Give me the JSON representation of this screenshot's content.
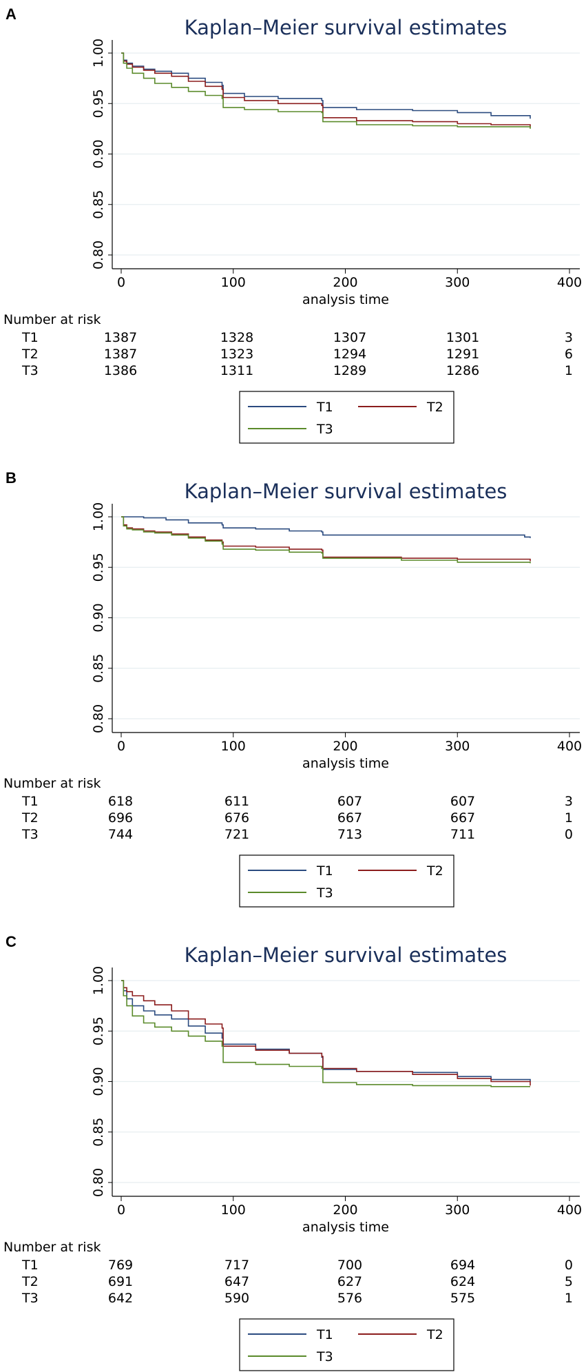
{
  "chart_data": [
    {
      "type": "line",
      "panel": "A",
      "title": "Kaplan–Meier survival estimates",
      "xlabel": "analysis time",
      "ylabel": "",
      "xlim": [
        0,
        400
      ],
      "ylim": [
        0.8,
        1.0
      ],
      "xticks": [
        0,
        100,
        200,
        300,
        400
      ],
      "yticks": [
        "1.00",
        "0.95",
        "0.90",
        "0.85",
        "0.80"
      ],
      "grid": true,
      "series": [
        {
          "name": "T1",
          "color": "#2a4a7f",
          "x": [
            0,
            2,
            5,
            10,
            20,
            30,
            45,
            60,
            75,
            90,
            91,
            110,
            140,
            179,
            180,
            210,
            260,
            300,
            330,
            365
          ],
          "y": [
            1.0,
            0.993,
            0.99,
            0.987,
            0.984,
            0.982,
            0.98,
            0.975,
            0.971,
            0.968,
            0.96,
            0.957,
            0.955,
            0.953,
            0.946,
            0.944,
            0.943,
            0.941,
            0.938,
            0.935
          ]
        },
        {
          "name": "T2",
          "color": "#8b1c1c",
          "x": [
            0,
            2,
            5,
            10,
            20,
            30,
            45,
            60,
            75,
            90,
            91,
            110,
            140,
            179,
            180,
            210,
            260,
            300,
            330,
            365
          ],
          "y": [
            1.0,
            0.992,
            0.989,
            0.986,
            0.983,
            0.98,
            0.977,
            0.972,
            0.967,
            0.964,
            0.956,
            0.953,
            0.95,
            0.948,
            0.936,
            0.933,
            0.932,
            0.93,
            0.929,
            0.926
          ]
        },
        {
          "name": "T3",
          "color": "#5a8a2a",
          "x": [
            0,
            2,
            5,
            10,
            20,
            30,
            45,
            60,
            75,
            90,
            91,
            110,
            140,
            179,
            180,
            210,
            260,
            300,
            330,
            365
          ],
          "y": [
            1.0,
            0.99,
            0.985,
            0.98,
            0.975,
            0.97,
            0.966,
            0.962,
            0.958,
            0.955,
            0.946,
            0.944,
            0.942,
            0.941,
            0.932,
            0.929,
            0.928,
            0.927,
            0.927,
            0.925
          ]
        }
      ],
      "risk_table": {
        "heading": "Number at risk",
        "times": [
          0,
          100,
          200,
          300,
          400
        ],
        "rows": [
          {
            "label": "T1",
            "values": [
              "1387",
              "1328",
              "1307",
              "1301",
              "3"
            ]
          },
          {
            "label": "T2",
            "values": [
              "1387",
              "1323",
              "1294",
              "1291",
              "6"
            ]
          },
          {
            "label": "T3",
            "values": [
              "1386",
              "1311",
              "1289",
              "1286",
              "1"
            ]
          }
        ]
      },
      "legend": [
        "T1",
        "T2",
        "T3"
      ]
    },
    {
      "type": "line",
      "panel": "B",
      "title": "Kaplan–Meier survival estimates",
      "xlabel": "analysis time",
      "ylabel": "",
      "xlim": [
        0,
        400
      ],
      "ylim": [
        0.8,
        1.0
      ],
      "xticks": [
        0,
        100,
        200,
        300,
        400
      ],
      "yticks": [
        "1.00",
        "0.95",
        "0.90",
        "0.85",
        "0.80"
      ],
      "grid": true,
      "series": [
        {
          "name": "T1",
          "color": "#2a4a7f",
          "x": [
            0,
            20,
            40,
            60,
            90,
            91,
            120,
            150,
            179,
            180,
            250,
            300,
            360,
            365
          ],
          "y": [
            1.0,
            0.999,
            0.997,
            0.994,
            0.992,
            0.989,
            0.988,
            0.986,
            0.985,
            0.982,
            0.982,
            0.982,
            0.98,
            0.979
          ]
        },
        {
          "name": "T2",
          "color": "#8b1c1c",
          "x": [
            0,
            2,
            5,
            10,
            20,
            30,
            45,
            60,
            75,
            90,
            91,
            120,
            150,
            179,
            180,
            250,
            300,
            365
          ],
          "y": [
            1.0,
            0.992,
            0.989,
            0.988,
            0.986,
            0.985,
            0.983,
            0.98,
            0.977,
            0.975,
            0.971,
            0.97,
            0.968,
            0.967,
            0.96,
            0.959,
            0.958,
            0.956
          ]
        },
        {
          "name": "T3",
          "color": "#5a8a2a",
          "x": [
            0,
            2,
            5,
            10,
            20,
            30,
            45,
            60,
            75,
            90,
            91,
            120,
            150,
            179,
            180,
            250,
            300,
            365
          ],
          "y": [
            1.0,
            0.991,
            0.988,
            0.987,
            0.985,
            0.984,
            0.982,
            0.979,
            0.976,
            0.973,
            0.968,
            0.967,
            0.965,
            0.964,
            0.959,
            0.957,
            0.955,
            0.954
          ]
        }
      ],
      "risk_table": {
        "heading": "Number at risk",
        "times": [
          0,
          100,
          200,
          300,
          400
        ],
        "rows": [
          {
            "label": "T1",
            "values": [
              "618",
              "611",
              "607",
              "607",
              "3"
            ]
          },
          {
            "label": "T2",
            "values": [
              "696",
              "676",
              "667",
              "667",
              "1"
            ]
          },
          {
            "label": "T3",
            "values": [
              "744",
              "721",
              "713",
              "711",
              "0"
            ]
          }
        ]
      },
      "legend": [
        "T1",
        "T2",
        "T3"
      ]
    },
    {
      "type": "line",
      "panel": "C",
      "title": "Kaplan–Meier survival estimates",
      "xlabel": "analysis time",
      "ylabel": "",
      "xlim": [
        0,
        400
      ],
      "ylim": [
        0.8,
        1.0
      ],
      "xticks": [
        0,
        100,
        200,
        300,
        400
      ],
      "yticks": [
        "1.00",
        "0.95",
        "0.90",
        "0.85",
        "0.80"
      ],
      "grid": true,
      "series": [
        {
          "name": "T1",
          "color": "#2a4a7f",
          "x": [
            0,
            2,
            5,
            10,
            20,
            30,
            45,
            60,
            75,
            90,
            91,
            120,
            150,
            179,
            180,
            210,
            260,
            300,
            330,
            365
          ],
          "y": [
            1.0,
            0.99,
            0.982,
            0.975,
            0.97,
            0.966,
            0.962,
            0.955,
            0.948,
            0.943,
            0.937,
            0.932,
            0.928,
            0.924,
            0.912,
            0.91,
            0.909,
            0.905,
            0.902,
            0.9
          ]
        },
        {
          "name": "T2",
          "color": "#8b1c1c",
          "x": [
            0,
            2,
            5,
            10,
            20,
            30,
            45,
            60,
            75,
            90,
            91,
            120,
            150,
            179,
            180,
            210,
            260,
            300,
            330,
            365
          ],
          "y": [
            1.0,
            0.993,
            0.989,
            0.985,
            0.98,
            0.976,
            0.97,
            0.962,
            0.957,
            0.953,
            0.935,
            0.931,
            0.928,
            0.925,
            0.913,
            0.91,
            0.907,
            0.903,
            0.9,
            0.896
          ]
        },
        {
          "name": "T3",
          "color": "#5a8a2a",
          "x": [
            0,
            2,
            5,
            10,
            20,
            30,
            45,
            60,
            75,
            90,
            91,
            120,
            150,
            179,
            180,
            210,
            260,
            300,
            330,
            365
          ],
          "y": [
            1.0,
            0.985,
            0.975,
            0.965,
            0.958,
            0.954,
            0.95,
            0.945,
            0.94,
            0.935,
            0.919,
            0.917,
            0.915,
            0.913,
            0.899,
            0.897,
            0.896,
            0.896,
            0.895,
            0.895
          ]
        }
      ],
      "risk_table": {
        "heading": "Number at risk",
        "times": [
          0,
          100,
          200,
          300,
          400
        ],
        "rows": [
          {
            "label": "T1",
            "values": [
              "769",
              "717",
              "700",
              "694",
              "0"
            ]
          },
          {
            "label": "T2",
            "values": [
              "691",
              "647",
              "627",
              "624",
              "5"
            ]
          },
          {
            "label": "T3",
            "values": [
              "642",
              "590",
              "576",
              "575",
              "1"
            ]
          }
        ]
      },
      "legend": [
        "T1",
        "T2",
        "T3"
      ]
    }
  ]
}
